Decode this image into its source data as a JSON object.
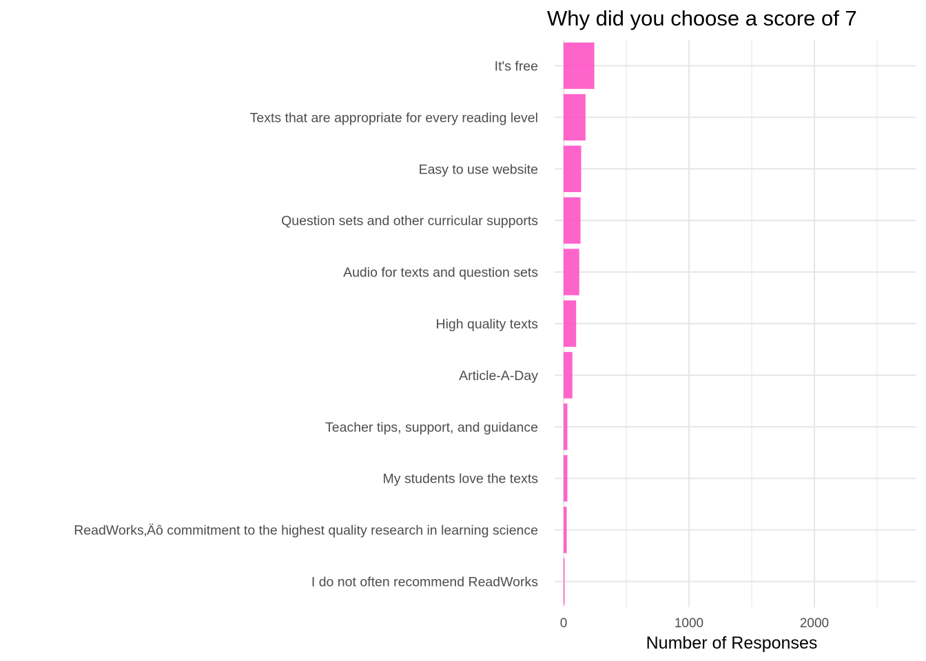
{
  "chart_data": {
    "type": "bar",
    "orientation": "horizontal",
    "title": "Why did you choose a score of 7",
    "xlabel": "Number of Responses",
    "ylabel": "",
    "xlim": [
      0,
      2800
    ],
    "x_ticks": [
      0,
      1000,
      2000
    ],
    "x_tick_labels": [
      "0",
      "1000",
      "2000"
    ],
    "categories": [
      "It's free",
      "Texts that are appropriate for every reading level",
      "Easy to use website",
      "Question sets and other curricular supports",
      "Audio for texts and question sets",
      "High quality texts",
      "Article-A-Day",
      "Teacher tips, support, and guidance",
      "My students love the texts",
      "ReadWorks‚Äô commitment to the highest quality research in learning science",
      "I do not often recommend ReadWorks"
    ],
    "values": [
      245,
      175,
      140,
      135,
      125,
      100,
      70,
      30,
      30,
      25,
      5
    ],
    "bar_color": "#ff4fc4",
    "grid": true,
    "legend": "none"
  }
}
